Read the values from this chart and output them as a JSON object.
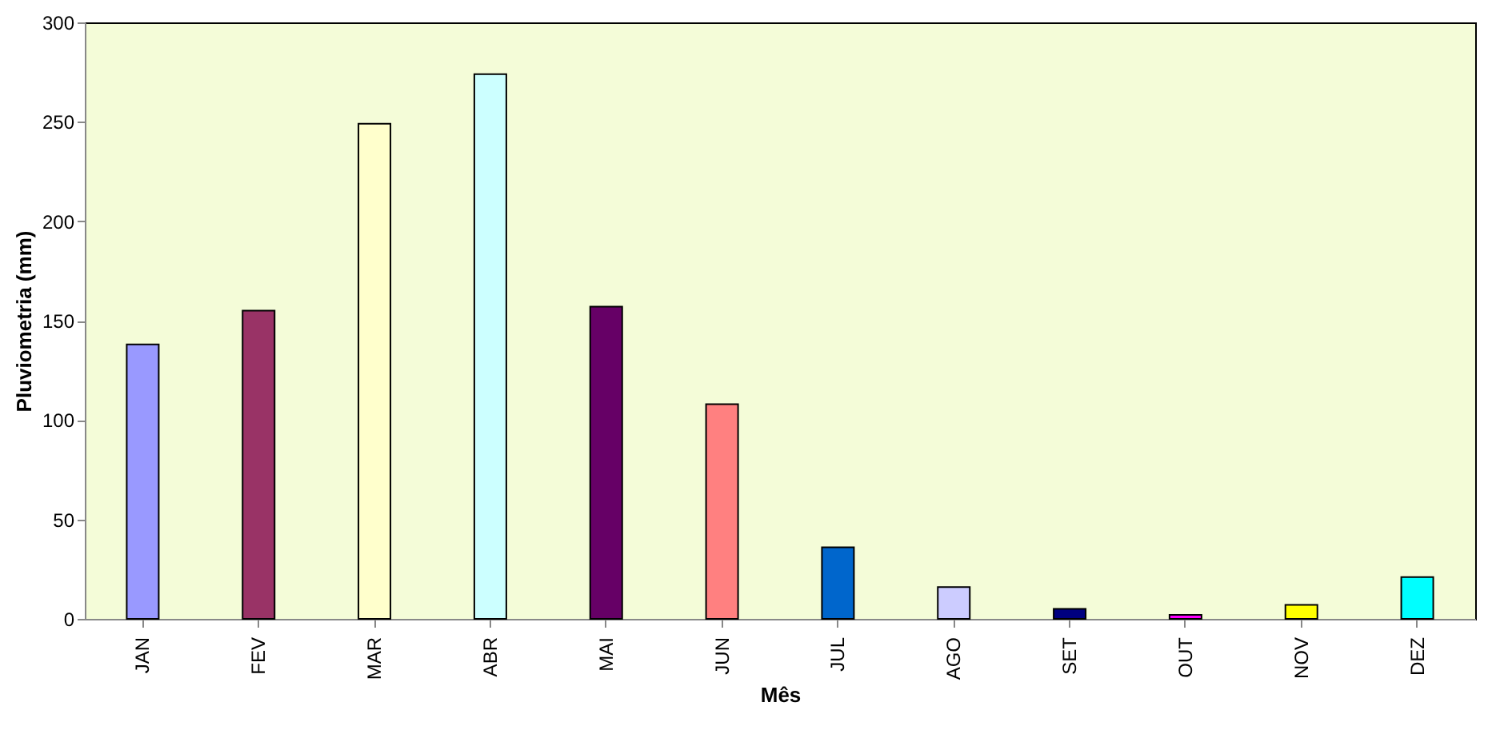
{
  "chart_data": {
    "type": "bar",
    "xlabel": "Mês",
    "ylabel": "Pluviometria (mm)",
    "categories": [
      "JAN",
      "FEV",
      "MAR",
      "ABR",
      "MAI",
      "JUN",
      "JUL",
      "AGO",
      "SET",
      "OUT",
      "NOV",
      "DEZ"
    ],
    "values": [
      138,
      155,
      249,
      274,
      157,
      108,
      36,
      16,
      5,
      2,
      7,
      21
    ],
    "colors": [
      "#9999ff",
      "#993366",
      "#ffffcc",
      "#ccffff",
      "#660066",
      "#ff8080",
      "#0066cc",
      "#ccccff",
      "#000080",
      "#ff00ff",
      "#ffff00",
      "#00ffff"
    ],
    "ylim": [
      0,
      300
    ],
    "yticks": [
      0,
      50,
      100,
      150,
      200,
      250,
      300
    ],
    "grid": false
  }
}
